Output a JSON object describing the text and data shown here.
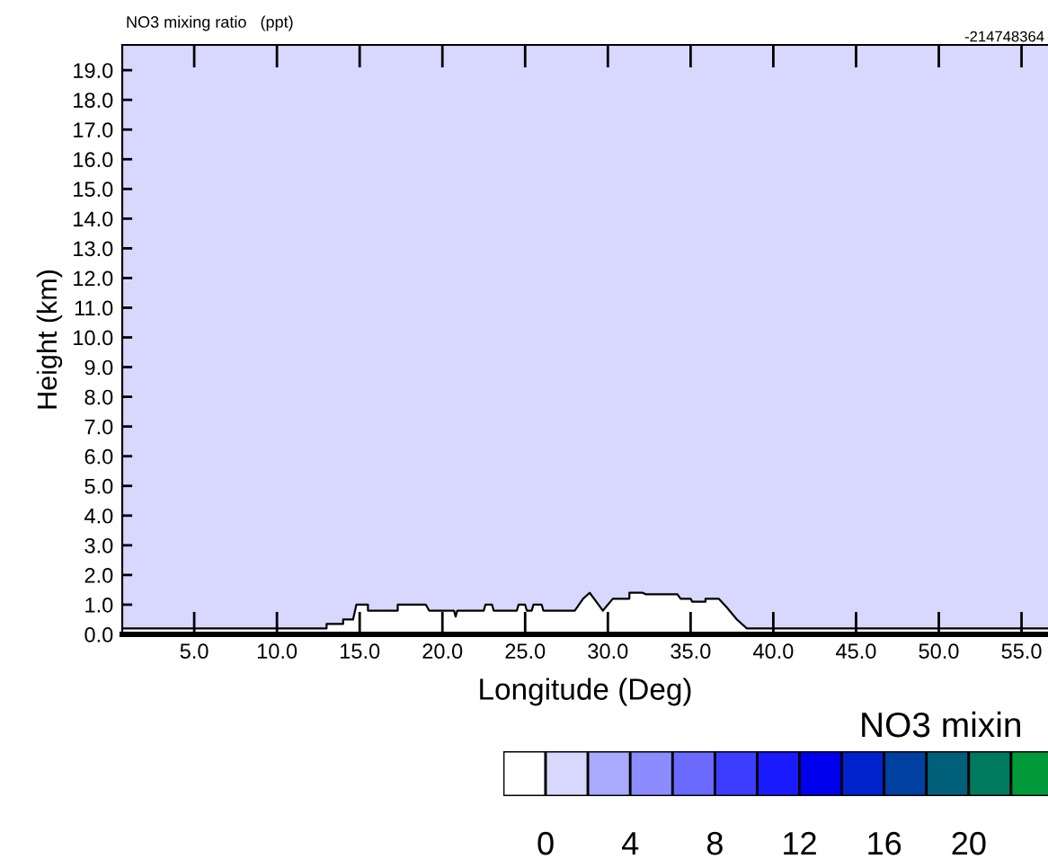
{
  "chart_data": {
    "type": "area",
    "subtitle": "NO3 mixing ratio   (ppt)",
    "annotations": [
      "-214748364"
    ],
    "xlabel": "Longitude (Deg)",
    "ylabel": "Height (km)",
    "series": [
      {
        "color": "#ffffff",
        "x": [
          0.65,
          13.0,
          13.0,
          14.0,
          14.0,
          14.6,
          14.8,
          15.5,
          15.5,
          17.3,
          17.3,
          19.0,
          19.2,
          20.7,
          20.8,
          20.9,
          22.5,
          22.6,
          23.0,
          23.1,
          24.5,
          24.6,
          25.0,
          25.1,
          25.4,
          25.5,
          26.0,
          26.1,
          28.0,
          28.5,
          28.9,
          29.3,
          29.7,
          30.3,
          31.3,
          31.3,
          32.1,
          32.3,
          34.2,
          34.4,
          35.0,
          35.1,
          35.9,
          35.9,
          36.7,
          37.2,
          37.8,
          38.4,
          56.6
        ],
        "values": [
          0.2,
          0.2,
          0.35,
          0.35,
          0.5,
          0.5,
          1.0,
          1.0,
          0.8,
          0.8,
          1.0,
          1.0,
          0.8,
          0.8,
          0.6,
          0.8,
          0.8,
          1.0,
          1.0,
          0.8,
          0.8,
          1.0,
          1.0,
          0.8,
          0.8,
          1.0,
          1.0,
          0.8,
          0.8,
          1.2,
          1.4,
          1.1,
          0.8,
          1.2,
          1.2,
          1.4,
          1.4,
          1.35,
          1.35,
          1.2,
          1.2,
          1.1,
          1.1,
          1.2,
          1.2,
          0.9,
          0.5,
          0.2,
          0.2
        ]
      }
    ],
    "bands": [
      {
        "axis": "y",
        "from": 0,
        "to": 19.85,
        "color": "#d8d8ff"
      }
    ],
    "xlim": [
      0.65,
      56.6
    ],
    "ylim": [
      0,
      19.85
    ],
    "xticks": [
      {
        "value": 5,
        "label": "5.0"
      },
      {
        "value": 10,
        "label": "10.0"
      },
      {
        "value": 15,
        "label": "15.0"
      },
      {
        "value": 20,
        "label": "20.0"
      },
      {
        "value": 25,
        "label": "25.0"
      },
      {
        "value": 30,
        "label": "30.0"
      },
      {
        "value": 35,
        "label": "35.0"
      },
      {
        "value": 40,
        "label": "40.0"
      },
      {
        "value": 45,
        "label": "45.0"
      },
      {
        "value": 50,
        "label": "50.0"
      },
      {
        "value": 55,
        "label": "55.0"
      }
    ],
    "yticks": [
      {
        "value": 0,
        "label": "0.0"
      },
      {
        "value": 1,
        "label": "1.0"
      },
      {
        "value": 2,
        "label": "2.0"
      },
      {
        "value": 3,
        "label": "3.0"
      },
      {
        "value": 4,
        "label": "4.0"
      },
      {
        "value": 5,
        "label": "5.0"
      },
      {
        "value": 6,
        "label": "6.0"
      },
      {
        "value": 7,
        "label": "7.0"
      },
      {
        "value": 8,
        "label": "8.0"
      },
      {
        "value": 9,
        "label": "9.0"
      },
      {
        "value": 10,
        "label": "10.0"
      },
      {
        "value": 11,
        "label": "11.0"
      },
      {
        "value": 12,
        "label": "12.0"
      },
      {
        "value": 13,
        "label": "13.0"
      },
      {
        "value": 14,
        "label": "14.0"
      },
      {
        "value": 15,
        "label": "15.0"
      },
      {
        "value": 16,
        "label": "16.0"
      },
      {
        "value": 17,
        "label": "17.0"
      },
      {
        "value": 18,
        "label": "18.0"
      },
      {
        "value": 19,
        "label": "19.0"
      }
    ],
    "clabel": "NO3 mixin",
    "clim": [
      -2,
      24
    ],
    "cticks": [
      0,
      4,
      8,
      12,
      16,
      20
    ],
    "colors": [
      "#ffffff",
      "#d8d8ff",
      "#aaaaff",
      "#8c8cff",
      "#6a6aff",
      "#3d3dff",
      "#1a1aff",
      "#0000ee",
      "#0022cc",
      "#0040a0",
      "#00607a",
      "#007a5e",
      "#009a3a"
    ],
    "grid": false,
    "legend": false
  }
}
